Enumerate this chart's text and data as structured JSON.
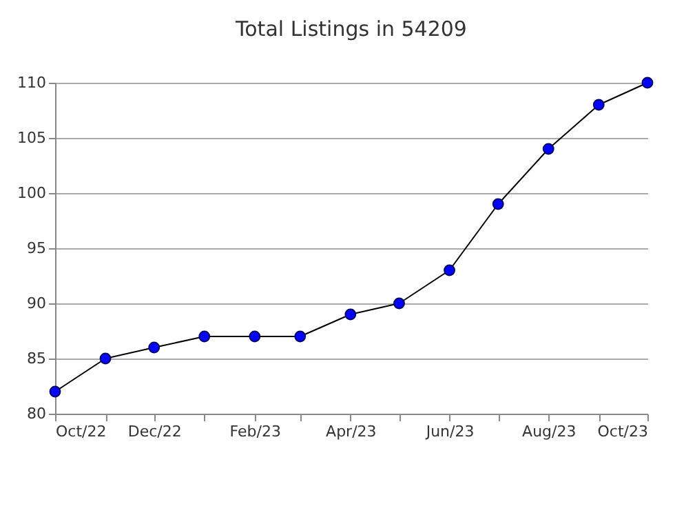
{
  "chart_data": {
    "type": "line",
    "title": "Total Listings in 54209",
    "x": [
      "2022-10",
      "2022-11",
      "2022-12",
      "2023-01",
      "2023-02",
      "2023-03",
      "2023-04",
      "2023-05",
      "2023-06",
      "2023-07",
      "2023-08",
      "2023-09",
      "2023-10"
    ],
    "series": [
      {
        "color": "#0000ff",
        "values": [
          82,
          85,
          86,
          87,
          87,
          87,
          89,
          90,
          93,
          99,
          104,
          108,
          110
        ]
      }
    ],
    "xlim": [
      "2022-10",
      "2023-10"
    ],
    "xticks": [
      {
        "value": "2022-10",
        "label": "Oct/22"
      },
      {
        "value": "2022-11",
        "label": null
      },
      {
        "value": "2022-12",
        "label": "Dec/22"
      },
      {
        "value": "2023-01",
        "label": null
      },
      {
        "value": "2023-02",
        "label": "Feb/23"
      },
      {
        "value": "2023-03",
        "label": null
      },
      {
        "value": "2023-04",
        "label": "Apr/23"
      },
      {
        "value": "2023-05",
        "label": null
      },
      {
        "value": "2023-06",
        "label": "Jun/23"
      },
      {
        "value": "2023-07",
        "label": null
      },
      {
        "value": "2023-08",
        "label": "Aug/23"
      },
      {
        "value": "2023-09",
        "label": null
      },
      {
        "value": "2023-10",
        "label": "Oct/23"
      }
    ],
    "ylim": [
      80,
      110
    ],
    "yticks": [
      80,
      85,
      90,
      95,
      100,
      105,
      110
    ],
    "grid": "y",
    "marker": "circle",
    "line_style": "solid"
  }
}
